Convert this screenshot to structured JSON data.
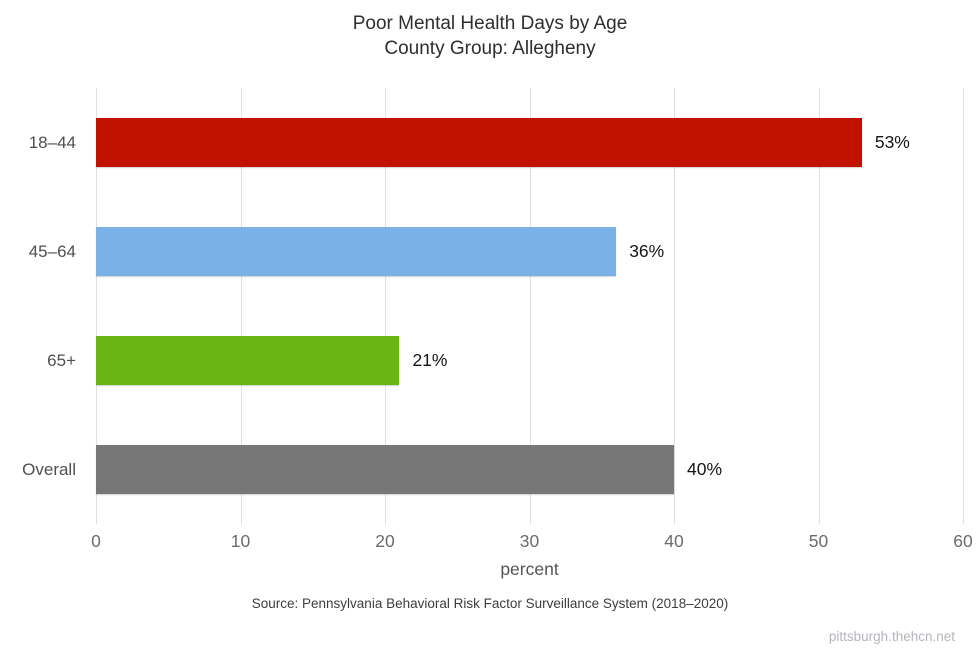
{
  "title": {
    "line1": "Poor Mental Health Days by Age",
    "line2": "County Group: Allegheny"
  },
  "chart_data": {
    "type": "bar",
    "orientation": "horizontal",
    "title": "Poor Mental Health Days by Age",
    "subtitle": "County Group: Allegheny",
    "categories": [
      "18–44",
      "45–64",
      "65+",
      "Overall"
    ],
    "values": [
      53,
      36,
      21,
      40
    ],
    "value_labels": [
      "53%",
      "36%",
      "21%",
      "40%"
    ],
    "bar_colors": [
      "#c11200",
      "#7ab2e8",
      "#69b612",
      "#777777"
    ],
    "xlabel": "percent",
    "xlim": [
      0,
      60
    ],
    "x_ticks": [
      "0",
      "10",
      "20",
      "30",
      "40",
      "50",
      "60"
    ],
    "grid": true,
    "gridline_color": "#e0e0e0",
    "legend": "none",
    "source": "Source: Pennsylvania Behavioral Risk Factor Surveillance System (2018–2020)",
    "watermark": "pittsburgh.thehcn.net"
  }
}
